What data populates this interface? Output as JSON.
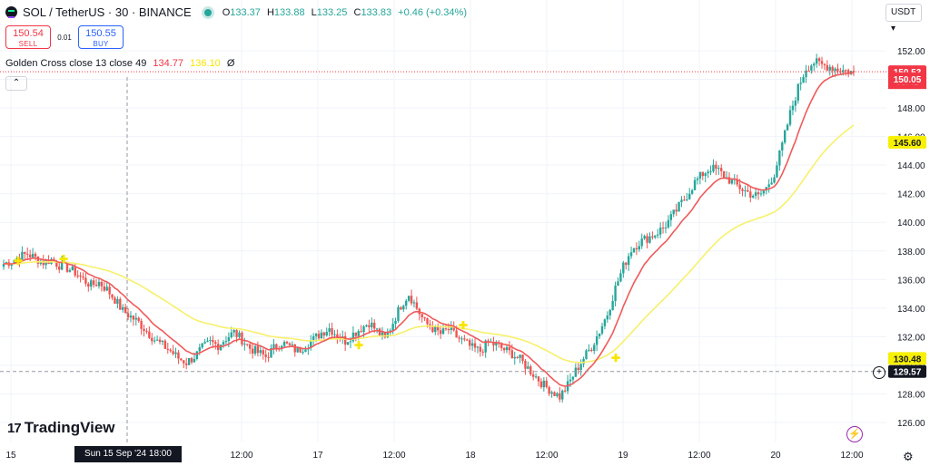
{
  "header": {
    "title": "SOL / TetherUS · 30 · BINANCE",
    "ohlc": {
      "o_label": "O",
      "o": "133.37",
      "h_label": "H",
      "h": "133.88",
      "l_label": "L",
      "l": "133.25",
      "c_label": "C",
      "c": "133.83",
      "chg": "+0.46 (+0.34%)"
    }
  },
  "trade": {
    "sell_price": "150.54",
    "sell_label": "SELL",
    "spread": "0.01",
    "buy_price": "150.55",
    "buy_label": "BUY"
  },
  "indicator": {
    "name": "Golden Cross close 13 close 49",
    "val1": "134.77",
    "val2": "136.10",
    "val3": "Ø"
  },
  "currency": "USDT ▾",
  "brand": "TradingView",
  "crosshair": {
    "time_label": "Sun 15 Sep '24   18:00",
    "price_label": "129.57"
  },
  "colors": {
    "up": "#26a69a",
    "down": "#ef5350",
    "fast_ma": "#f05a5a",
    "slow_ma": "#f7f06a",
    "accent": "#2962ff"
  },
  "chart_data": {
    "type": "candlestick",
    "ylim": [
      125,
      153
    ],
    "y_ticks": [
      126,
      128,
      130,
      132,
      134,
      136,
      138,
      140,
      142,
      144,
      146,
      148,
      150,
      152
    ],
    "y_tick_labels": [
      "126.00",
      "128.00",
      "130.00",
      "132.00",
      "134.00",
      "136.00",
      "138.00",
      "140.00",
      "142.00",
      "144.00",
      "146.00",
      "148.00",
      "150.00",
      "152.00"
    ],
    "x_ticks": [
      "15",
      "12:00",
      "17",
      "12:00",
      "18",
      "12:00",
      "19",
      "12:00",
      "20",
      "12:00"
    ],
    "x_tick_positions": [
      20,
      116,
      212,
      308,
      404,
      500,
      596,
      692,
      788,
      884
    ],
    "series": [
      {
        "name": "Golden Cross close 13",
        "type": "line"
      },
      {
        "name": "Golden Cross close 49",
        "type": "line"
      }
    ],
    "close_path": [
      137.1,
      137.3,
      137.6,
      137.8,
      137.5,
      137.2,
      137.4,
      137.0,
      136.8,
      136.5,
      136.0,
      135.6,
      135.8,
      135.3,
      134.6,
      133.8,
      133.4,
      133.0,
      132.4,
      131.8,
      131.4,
      131.0,
      130.5,
      130.2,
      130.6,
      131.2,
      131.6,
      131.4,
      131.9,
      132.3,
      131.8,
      131.2,
      130.9,
      130.6,
      131.2,
      131.6,
      131.3,
      131.0,
      131.4,
      131.8,
      132.3,
      132.6,
      132.1,
      131.7,
      132.2,
      132.6,
      133.0,
      132.4,
      131.8,
      133.0,
      134.2,
      135.0,
      134.0,
      133.0,
      132.6,
      132.2,
      132.5,
      132.0,
      131.6,
      131.2,
      131.0,
      131.6,
      131.4,
      131.1,
      130.8,
      130.4,
      129.8,
      129.2,
      128.6,
      128.2,
      127.8,
      128.6,
      129.6,
      130.5,
      131.3,
      132.4,
      133.6,
      135.4,
      136.9,
      138.1,
      138.6,
      138.9,
      139.2,
      139.6,
      140.3,
      141.1,
      141.9,
      142.8,
      143.4,
      143.8,
      143.6,
      143.1,
      142.7,
      142.3,
      142.0,
      141.8,
      142.4,
      143.4,
      145.4,
      147.6,
      149.4,
      150.8,
      151.2,
      151.0,
      150.9,
      150.7,
      150.6,
      150.5
    ],
    "last_price": "150.53",
    "countdown": "08:42",
    "fast_ma_last": "150.05",
    "slow_ma_last": "145.60",
    "marker_price": "130.48"
  }
}
